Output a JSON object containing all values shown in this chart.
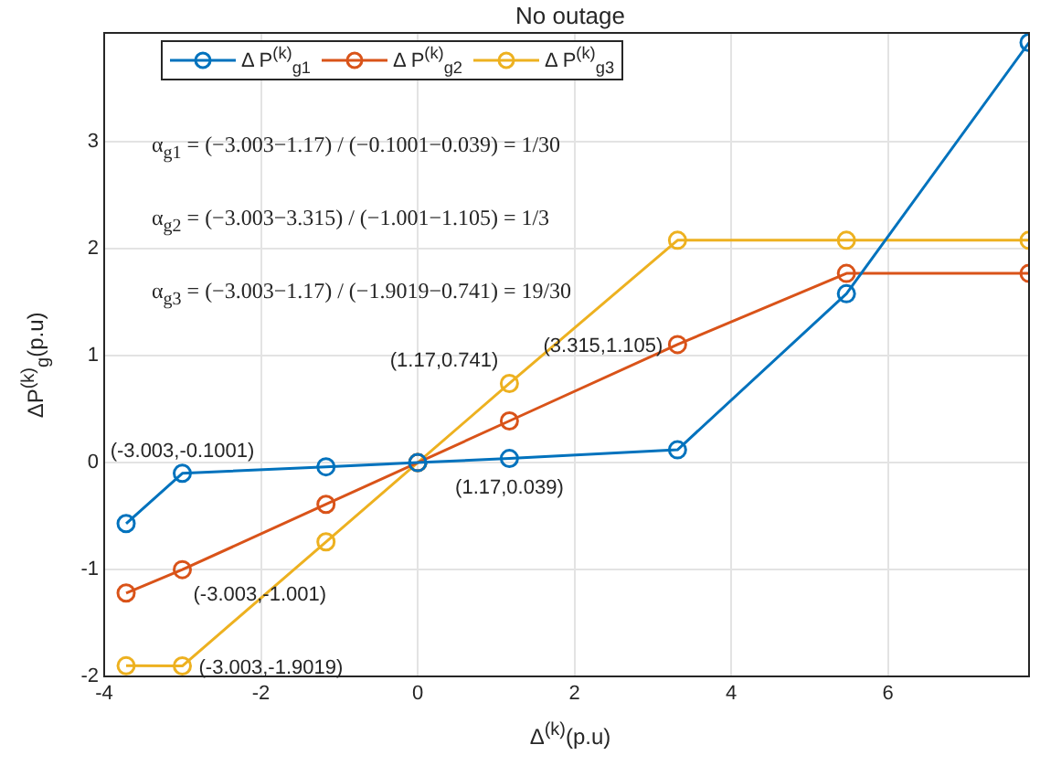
{
  "chart_data": {
    "type": "line",
    "title": "No outage",
    "xlabel": "Δ$^{(k)}$(p.u)",
    "ylabel": "ΔP$^{(k)}$$_{g}$(p.u)",
    "x": [
      -3.72,
      -3.003,
      -1.17,
      0,
      1.17,
      3.315,
      5.47,
      7.8
    ],
    "series": [
      {
        "name": "Δ P$^{(k)}$$_{g1}$",
        "color": "#0072bd",
        "values": [
          -0.57,
          -0.1001,
          -0.039,
          0,
          0.039,
          0.12,
          1.58,
          3.93
        ]
      },
      {
        "name": "Δ P$^{(k)}$$_{g2}$",
        "color": "#d95319",
        "values": [
          -1.22,
          -1.001,
          -0.39,
          0,
          0.39,
          1.105,
          1.77,
          1.77
        ]
      },
      {
        "name": "Δ P$^{(k)}$$_{g3}$",
        "color": "#edb120",
        "values": [
          -1.9,
          -1.9019,
          -0.741,
          0,
          0.741,
          2.08,
          2.08,
          2.08
        ]
      }
    ],
    "xlim": [
      -4,
      7.8
    ],
    "xticks": [
      -4,
      -2,
      0,
      2,
      4,
      6
    ],
    "ylim": [
      -2,
      4.02
    ],
    "yticks": [
      -2,
      -1,
      0,
      1,
      2,
      3
    ],
    "grid": true,
    "legend": "top left",
    "marker": "circle",
    "line_style": "solid",
    "annotations": [
      "α$_{g1}$ = (−3.003−1.17) / (−0.1001−0.039) = 1/30",
      "α$_{g2}$ = (−3.003−3.315) / (−1.001−1.105) = 1/3",
      "α$_{g3}$ = (−3.003−1.17) / (−1.9019−0.741) = 19/30",
      {
        "text": "(-3.003,-0.1001)",
        "x": -3.003,
        "y": -0.1001
      },
      {
        "text": "(-3.003,-1.001)",
        "x": -3.003,
        "y": -1.001
      },
      {
        "text": "(-3.003,-1.9019)",
        "x": -3.003,
        "y": -1.9019
      },
      {
        "text": "(1.17,0.039)",
        "x": 1.17,
        "y": 0.039
      },
      {
        "text": "(1.17,0.741)",
        "x": 1.17,
        "y": 0.741
      },
      {
        "text": "(3.315,1.105)",
        "x": 3.315,
        "y": 1.105
      }
    ]
  }
}
